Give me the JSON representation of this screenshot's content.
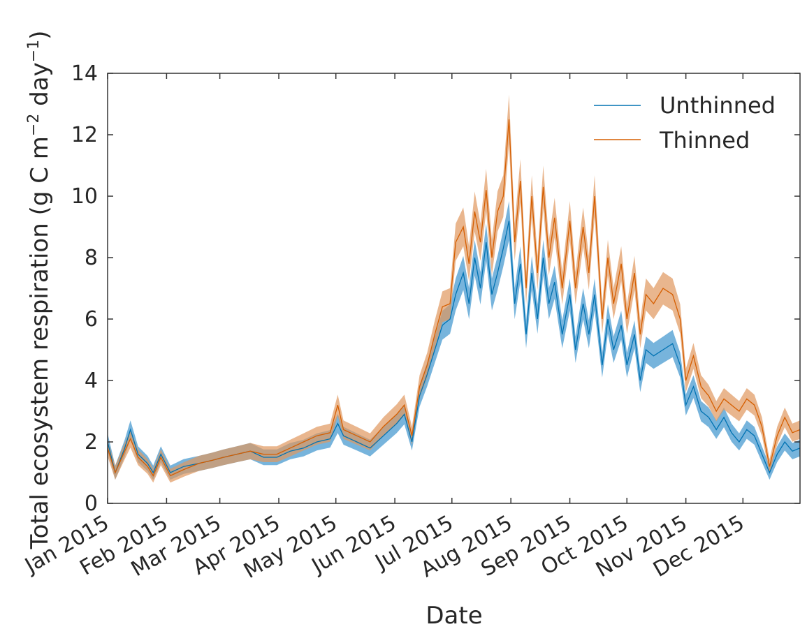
{
  "chart_data": {
    "type": "line",
    "title": "",
    "xlabel": "Date",
    "ylabel": "Total ecosystem respiration (g C m",
    "ylabel_sup1": "−2",
    "ylabel_mid": " day",
    "ylabel_sup2": "−1",
    "ylabel_end": ")",
    "ylim": [
      0,
      14
    ],
    "yticks": [
      0,
      2,
      4,
      6,
      8,
      10,
      12,
      14
    ],
    "xlim": [
      "2015-01-01",
      "2015-12-31"
    ],
    "xticks": [
      {
        "date": "2015-01-01",
        "label": "Jan 2015"
      },
      {
        "date": "2015-02-01",
        "label": "Feb 2015"
      },
      {
        "date": "2015-03-01",
        "label": "Mar 2015"
      },
      {
        "date": "2015-04-01",
        "label": "Apr 2015"
      },
      {
        "date": "2015-05-01",
        "label": "May 2015"
      },
      {
        "date": "2015-06-01",
        "label": "Jun 2015"
      },
      {
        "date": "2015-07-01",
        "label": "Jul 2015"
      },
      {
        "date": "2015-08-01",
        "label": "Aug 2015"
      },
      {
        "date": "2015-09-01",
        "label": "Sep 2015"
      },
      {
        "date": "2015-10-01",
        "label": "Oct 2015"
      },
      {
        "date": "2015-11-01",
        "label": "Nov 2015"
      },
      {
        "date": "2015-12-01",
        "label": "Dec 2015"
      }
    ],
    "grid": false,
    "legend_position": "top-right",
    "shaded_band": "uncertainty range around each series",
    "series": [
      {
        "name": "Unthinned",
        "color": "#0072B2",
        "band_color": "#4A9BD0",
        "points": [
          [
            "2015-01-01",
            2.0
          ],
          [
            "2015-01-05",
            1.0
          ],
          [
            "2015-01-10",
            1.8
          ],
          [
            "2015-01-13",
            2.4
          ],
          [
            "2015-01-17",
            1.6
          ],
          [
            "2015-01-22",
            1.3
          ],
          [
            "2015-01-25",
            1.0
          ],
          [
            "2015-01-29",
            1.6
          ],
          [
            "2015-02-03",
            1.0
          ],
          [
            "2015-02-10",
            1.2
          ],
          [
            "2015-02-18",
            1.3
          ],
          [
            "2015-02-25",
            1.4
          ],
          [
            "2015-03-03",
            1.5
          ],
          [
            "2015-03-10",
            1.6
          ],
          [
            "2015-03-17",
            1.7
          ],
          [
            "2015-03-24",
            1.5
          ],
          [
            "2015-03-31",
            1.5
          ],
          [
            "2015-04-07",
            1.7
          ],
          [
            "2015-04-14",
            1.8
          ],
          [
            "2015-04-21",
            2.0
          ],
          [
            "2015-04-28",
            2.1
          ],
          [
            "2015-05-02",
            2.6
          ],
          [
            "2015-05-05",
            2.2
          ],
          [
            "2015-05-12",
            2.0
          ],
          [
            "2015-05-19",
            1.8
          ],
          [
            "2015-05-26",
            2.2
          ],
          [
            "2015-06-02",
            2.6
          ],
          [
            "2015-06-06",
            2.9
          ],
          [
            "2015-06-10",
            2.0
          ],
          [
            "2015-06-14",
            3.5
          ],
          [
            "2015-06-18",
            4.2
          ],
          [
            "2015-06-22",
            5.0
          ],
          [
            "2015-06-26",
            5.8
          ],
          [
            "2015-06-30",
            6.0
          ],
          [
            "2015-07-03",
            6.8
          ],
          [
            "2015-07-07",
            7.5
          ],
          [
            "2015-07-10",
            6.5
          ],
          [
            "2015-07-13",
            8.0
          ],
          [
            "2015-07-16",
            7.0
          ],
          [
            "2015-07-19",
            8.5
          ],
          [
            "2015-07-22",
            6.8
          ],
          [
            "2015-07-25",
            7.5
          ],
          [
            "2015-07-28",
            8.3
          ],
          [
            "2015-07-31",
            9.2
          ],
          [
            "2015-08-03",
            6.5
          ],
          [
            "2015-08-06",
            7.8
          ],
          [
            "2015-08-09",
            5.5
          ],
          [
            "2015-08-12",
            7.5
          ],
          [
            "2015-08-15",
            6.0
          ],
          [
            "2015-08-18",
            8.0
          ],
          [
            "2015-08-21",
            6.5
          ],
          [
            "2015-08-24",
            7.2
          ],
          [
            "2015-08-28",
            5.5
          ],
          [
            "2015-09-01",
            6.8
          ],
          [
            "2015-09-04",
            5.0
          ],
          [
            "2015-09-08",
            6.5
          ],
          [
            "2015-09-11",
            5.5
          ],
          [
            "2015-09-14",
            6.8
          ],
          [
            "2015-09-18",
            4.5
          ],
          [
            "2015-09-21",
            6.0
          ],
          [
            "2015-09-24",
            5.0
          ],
          [
            "2015-09-28",
            5.8
          ],
          [
            "2015-10-01",
            4.5
          ],
          [
            "2015-10-05",
            5.5
          ],
          [
            "2015-10-08",
            4.0
          ],
          [
            "2015-10-11",
            5.0
          ],
          [
            "2015-10-15",
            4.8
          ],
          [
            "2015-10-20",
            5.0
          ],
          [
            "2015-10-25",
            5.2
          ],
          [
            "2015-10-29",
            4.5
          ],
          [
            "2015-11-01",
            3.2
          ],
          [
            "2015-11-05",
            3.8
          ],
          [
            "2015-11-09",
            3.0
          ],
          [
            "2015-11-13",
            2.8
          ],
          [
            "2015-11-17",
            2.4
          ],
          [
            "2015-11-21",
            2.8
          ],
          [
            "2015-11-25",
            2.3
          ],
          [
            "2015-11-29",
            2.0
          ],
          [
            "2015-12-03",
            2.4
          ],
          [
            "2015-12-07",
            2.2
          ],
          [
            "2015-12-11",
            1.6
          ],
          [
            "2015-12-15",
            1.0
          ],
          [
            "2015-12-19",
            1.6
          ],
          [
            "2015-12-23",
            2.0
          ],
          [
            "2015-12-27",
            1.7
          ],
          [
            "2015-12-31",
            1.8
          ]
        ]
      },
      {
        "name": "Thinned",
        "color": "#D55E00",
        "band_color": "#E0975E",
        "points": [
          [
            "2015-01-01",
            1.8
          ],
          [
            "2015-01-05",
            1.0
          ],
          [
            "2015-01-10",
            1.7
          ],
          [
            "2015-01-13",
            2.1
          ],
          [
            "2015-01-17",
            1.5
          ],
          [
            "2015-01-22",
            1.2
          ],
          [
            "2015-01-25",
            0.9
          ],
          [
            "2015-01-29",
            1.5
          ],
          [
            "2015-02-03",
            0.9
          ],
          [
            "2015-02-10",
            1.1
          ],
          [
            "2015-02-18",
            1.3
          ],
          [
            "2015-02-25",
            1.4
          ],
          [
            "2015-03-03",
            1.5
          ],
          [
            "2015-03-10",
            1.6
          ],
          [
            "2015-03-17",
            1.7
          ],
          [
            "2015-03-24",
            1.6
          ],
          [
            "2015-03-31",
            1.6
          ],
          [
            "2015-04-07",
            1.8
          ],
          [
            "2015-04-14",
            2.0
          ],
          [
            "2015-04-21",
            2.2
          ],
          [
            "2015-04-28",
            2.3
          ],
          [
            "2015-05-02",
            3.2
          ],
          [
            "2015-05-05",
            2.4
          ],
          [
            "2015-05-12",
            2.2
          ],
          [
            "2015-05-19",
            2.0
          ],
          [
            "2015-05-26",
            2.5
          ],
          [
            "2015-06-02",
            2.9
          ],
          [
            "2015-06-06",
            3.2
          ],
          [
            "2015-06-10",
            2.2
          ],
          [
            "2015-06-14",
            3.8
          ],
          [
            "2015-06-18",
            4.5
          ],
          [
            "2015-06-22",
            5.5
          ],
          [
            "2015-06-26",
            6.4
          ],
          [
            "2015-06-30",
            6.5
          ],
          [
            "2015-07-03",
            8.5
          ],
          [
            "2015-07-07",
            9.0
          ],
          [
            "2015-07-10",
            7.8
          ],
          [
            "2015-07-13",
            9.5
          ],
          [
            "2015-07-16",
            8.5
          ],
          [
            "2015-07-19",
            10.2
          ],
          [
            "2015-07-22",
            8.0
          ],
          [
            "2015-07-25",
            9.5
          ],
          [
            "2015-07-28",
            10.0
          ],
          [
            "2015-07-31",
            12.5
          ],
          [
            "2015-08-03",
            8.5
          ],
          [
            "2015-08-06",
            10.5
          ],
          [
            "2015-08-09",
            7.0
          ],
          [
            "2015-08-12",
            10.0
          ],
          [
            "2015-08-15",
            7.5
          ],
          [
            "2015-08-18",
            10.3
          ],
          [
            "2015-08-21",
            8.0
          ],
          [
            "2015-08-24",
            9.3
          ],
          [
            "2015-08-28",
            7.0
          ],
          [
            "2015-09-01",
            9.2
          ],
          [
            "2015-09-04",
            7.0
          ],
          [
            "2015-09-08",
            9.0
          ],
          [
            "2015-09-11",
            7.5
          ],
          [
            "2015-09-14",
            10.0
          ],
          [
            "2015-09-18",
            6.0
          ],
          [
            "2015-09-21",
            8.0
          ],
          [
            "2015-09-24",
            6.5
          ],
          [
            "2015-09-28",
            7.8
          ],
          [
            "2015-10-01",
            6.0
          ],
          [
            "2015-10-05",
            7.5
          ],
          [
            "2015-10-08",
            5.5
          ],
          [
            "2015-10-11",
            6.8
          ],
          [
            "2015-10-15",
            6.5
          ],
          [
            "2015-10-20",
            7.0
          ],
          [
            "2015-10-25",
            6.8
          ],
          [
            "2015-10-29",
            6.0
          ],
          [
            "2015-11-01",
            4.0
          ],
          [
            "2015-11-05",
            4.8
          ],
          [
            "2015-11-09",
            3.8
          ],
          [
            "2015-11-13",
            3.5
          ],
          [
            "2015-11-17",
            3.0
          ],
          [
            "2015-11-21",
            3.4
          ],
          [
            "2015-11-25",
            3.2
          ],
          [
            "2015-11-29",
            3.0
          ],
          [
            "2015-12-03",
            3.4
          ],
          [
            "2015-12-07",
            3.2
          ],
          [
            "2015-12-11",
            2.5
          ],
          [
            "2015-12-15",
            1.2
          ],
          [
            "2015-12-19",
            2.2
          ],
          [
            "2015-12-23",
            2.8
          ],
          [
            "2015-12-27",
            2.3
          ],
          [
            "2015-12-31",
            2.4
          ]
        ]
      }
    ]
  }
}
